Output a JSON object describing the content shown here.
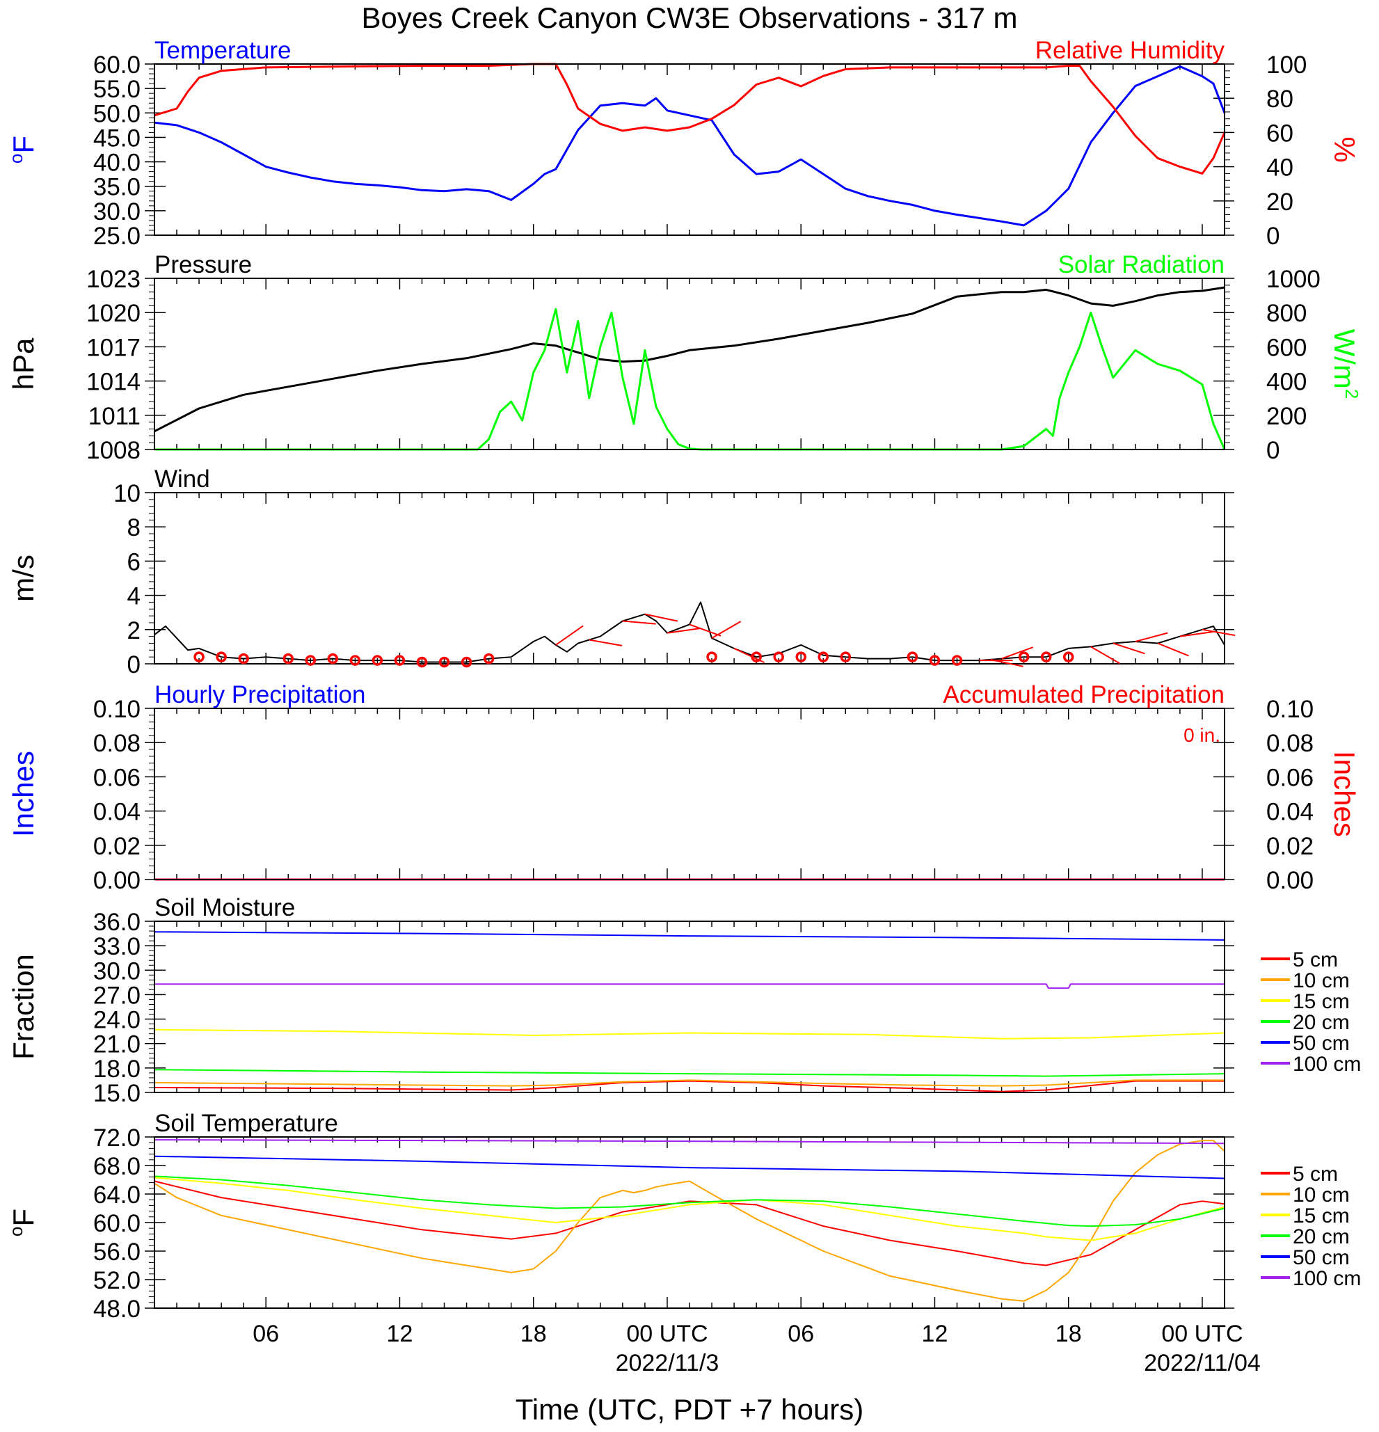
{
  "page": {
    "title": "Boyes Creek Canyon CW3E Observations - 317 m",
    "xlabel": "Time (UTC, PDT +7 hours)"
  },
  "colors": {
    "blue": "#0000ff",
    "red": "#ff0000",
    "green": "#00ff00",
    "black": "#000000",
    "orange": "#ffa500",
    "yellow": "#ffff00",
    "purple": "#a020f0"
  },
  "chart_data": [
    {
      "panel": "temp_rh",
      "type": "line",
      "title_left": "Temperature",
      "title_right": "Relative Humidity",
      "ylabel_left": "oF",
      "ylabel_right": "%",
      "ylim": [
        25,
        60
      ],
      "yticks": [
        "25.0",
        "30.0",
        "35.0",
        "40.0",
        "45.0",
        "50.0",
        "55.0",
        "60.0"
      ],
      "ylim_right": [
        0,
        100
      ],
      "yticks_right": [
        "0",
        "20",
        "40",
        "60",
        "80",
        "100"
      ],
      "series": [
        {
          "name": "Temperature",
          "color": "#0000ff",
          "axis": "left",
          "x": [
            0,
            1,
            2,
            3,
            4,
            5,
            6,
            7,
            8,
            9,
            10,
            11,
            12,
            13,
            14,
            15,
            16,
            17,
            17.5,
            18,
            19,
            20,
            21,
            22,
            22.5,
            23,
            24,
            25,
            26,
            27,
            28,
            29,
            30,
            31,
            32,
            33,
            34,
            35,
            36,
            37,
            38,
            39,
            40,
            41,
            42,
            43,
            44,
            45,
            46,
            47,
            47.5,
            48
          ],
          "y": [
            48,
            47.5,
            46,
            44,
            41.5,
            39,
            37.8,
            36.8,
            36,
            35.5,
            35.2,
            34.8,
            34.2,
            34,
            34.4,
            34,
            32.2,
            35.5,
            37.5,
            38.5,
            46.5,
            51.5,
            52,
            51.5,
            53,
            50.5,
            49.5,
            48.5,
            41.5,
            37.5,
            38,
            40.5,
            37.5,
            34.5,
            33,
            32,
            31.2,
            30,
            29.2,
            28.5,
            27.8,
            27,
            30,
            34.5,
            44,
            50,
            55.5,
            57.5,
            59.5,
            57.5,
            56,
            50
          ]
        },
        {
          "name": "Relative Humidity",
          "color": "#ff0000",
          "axis": "right",
          "x": [
            0,
            1,
            1.5,
            2,
            3,
            5,
            8,
            12,
            15,
            16,
            17,
            17.5,
            18,
            18.5,
            19,
            20,
            21,
            22,
            23,
            24,
            25,
            26,
            27,
            28,
            29,
            30,
            31,
            33,
            36,
            38,
            40,
            41,
            41.5,
            42,
            43,
            44,
            45,
            46,
            47,
            47.5,
            48
          ],
          "y": [
            70,
            74,
            84,
            92,
            96,
            98,
            98.5,
            99,
            99,
            99.5,
            100,
            100,
            100,
            88,
            74,
            65,
            61,
            63,
            61,
            63,
            68,
            76,
            88,
            92,
            87,
            93,
            97,
            98,
            98,
            98,
            98,
            99,
            99,
            90,
            75,
            58,
            45,
            40,
            36,
            45,
            60
          ]
        }
      ]
    },
    {
      "panel": "pressure_solar",
      "type": "line",
      "title_left": "Pressure",
      "title_right": "Solar Radiation",
      "ylabel_left": "hPa",
      "ylabel_right": "W/m2",
      "ylim": [
        1008,
        1023
      ],
      "yticks": [
        "1008",
        "1011",
        "1014",
        "1017",
        "1020",
        "1023"
      ],
      "ylim_right": [
        0,
        1000
      ],
      "yticks_right": [
        "0",
        "200",
        "400",
        "600",
        "800",
        "1000"
      ],
      "series": [
        {
          "name": "Pressure",
          "color": "#000000",
          "axis": "left",
          "x": [
            0,
            2,
            4,
            6,
            8,
            10,
            12,
            14,
            16,
            17,
            18,
            19,
            20,
            21,
            22,
            23,
            24,
            25,
            26,
            28,
            30,
            32,
            34,
            36,
            38,
            39,
            40,
            41,
            42,
            43,
            44,
            45,
            46,
            47,
            48
          ],
          "y": [
            1009.6,
            1011.6,
            1012.8,
            1013.5,
            1014.2,
            1014.9,
            1015.5,
            1016,
            1016.8,
            1017.3,
            1017.1,
            1016.5,
            1015.9,
            1015.7,
            1015.8,
            1016.2,
            1016.7,
            1016.9,
            1017.1,
            1017.7,
            1018.4,
            1019.1,
            1019.9,
            1021.4,
            1021.8,
            1021.8,
            1022,
            1021.5,
            1020.8,
            1020.6,
            1021,
            1021.5,
            1021.8,
            1021.9,
            1022.2
          ]
        },
        {
          "name": "Solar Radiation",
          "color": "#00ff00",
          "axis": "right",
          "x": [
            0,
            14.5,
            15,
            15.5,
            16,
            16.5,
            17,
            17.5,
            18,
            18.5,
            19,
            19.5,
            20,
            20.5,
            21,
            21.5,
            22,
            22.5,
            23,
            23.5,
            24,
            24.5,
            25,
            31,
            32,
            33,
            34,
            35,
            36,
            37,
            38,
            39,
            40,
            40.3,
            40.6,
            41,
            41.5,
            42,
            42.5,
            43,
            44,
            45,
            46,
            47,
            47.5,
            48
          ],
          "y": [
            0,
            0,
            60,
            220,
            280,
            170,
            450,
            580,
            820,
            450,
            750,
            300,
            600,
            800,
            420,
            150,
            580,
            250,
            120,
            30,
            5,
            0,
            0,
            0,
            0,
            0,
            0,
            0,
            0,
            0,
            0,
            20,
            120,
            80,
            300,
            450,
            600,
            800,
            600,
            420,
            580,
            500,
            460,
            380,
            150,
            0
          ]
        }
      ]
    },
    {
      "panel": "wind",
      "type": "line",
      "title_left": "Wind",
      "ylabel_left": "m/s",
      "ylim": [
        0,
        10
      ],
      "yticks": [
        "0",
        "2",
        "4",
        "6",
        "8",
        "10"
      ],
      "series": [
        {
          "name": "Wind",
          "color": "#000000",
          "axis": "left",
          "x": [
            0,
            0.5,
            1,
            1.5,
            2,
            3,
            4,
            5,
            6,
            7,
            8,
            9,
            10,
            11,
            12,
            13,
            14,
            15,
            16,
            17,
            17.5,
            18,
            18.5,
            19,
            20,
            21,
            22,
            22.5,
            23,
            24,
            24.5,
            25,
            26,
            27,
            28,
            29,
            30,
            31,
            32,
            33,
            34,
            35,
            36,
            37,
            38,
            39,
            40,
            41,
            42,
            43,
            44,
            45,
            46,
            47,
            47.5,
            48
          ],
          "y": [
            1.7,
            2.2,
            1.5,
            0.8,
            0.9,
            0.4,
            0.3,
            0.4,
            0.3,
            0.2,
            0.3,
            0.2,
            0.2,
            0.2,
            0.1,
            0.1,
            0.1,
            0.3,
            0.4,
            1.3,
            1.6,
            1.1,
            0.7,
            1.2,
            1.6,
            2.5,
            2.9,
            2.5,
            1.8,
            2.3,
            3.6,
            1.5,
            0.9,
            0.4,
            0.6,
            1.1,
            0.5,
            0.4,
            0.3,
            0.3,
            0.4,
            0.2,
            0.2,
            0.2,
            0.3,
            0.4,
            0.4,
            0.9,
            1.0,
            1.2,
            1.3,
            1.2,
            1.6,
            2.0,
            2.2,
            1.1
          ]
        }
      ]
    },
    {
      "panel": "precip",
      "type": "line",
      "title_left": "Hourly Precipitation",
      "title_right": "Accumulated Precipitation",
      "annotation": "0 in.",
      "ylabel_left": "Inches",
      "ylabel_right": "Inches",
      "ylim": [
        0,
        0.1
      ],
      "yticks": [
        "0.00",
        "0.02",
        "0.04",
        "0.06",
        "0.08",
        "0.10"
      ],
      "series": [
        {
          "name": "Hourly Precipitation",
          "color": "#0000ff",
          "axis": "left",
          "x": [
            0,
            48
          ],
          "y": [
            0,
            0
          ]
        },
        {
          "name": "Accumulated Precipitation",
          "color": "#ff0000",
          "axis": "right",
          "x": [
            0,
            48
          ],
          "y": [
            0,
            0
          ]
        }
      ]
    },
    {
      "panel": "soil_moisture",
      "type": "line",
      "title_left": "Soil Moisture",
      "ylabel_left": "Fraction",
      "ylim": [
        15,
        36
      ],
      "yticks": [
        "15.0",
        "18.0",
        "21.0",
        "24.0",
        "27.0",
        "30.0",
        "33.0",
        "36.0"
      ],
      "series": [
        {
          "name": "5 cm",
          "color": "#ff0000",
          "x": [
            0,
            8,
            16,
            18,
            21,
            24,
            27,
            30,
            34,
            38,
            40,
            44,
            48
          ],
          "y": [
            15.6,
            15.5,
            15.3,
            15.6,
            16.2,
            16.4,
            16.2,
            15.8,
            15.5,
            15.1,
            15.3,
            16.4,
            16.4
          ]
        },
        {
          "name": "10 cm",
          "color": "#ffa500",
          "x": [
            0,
            8,
            16,
            18,
            21,
            24,
            27,
            30,
            34,
            38,
            40,
            44,
            48
          ],
          "y": [
            16.2,
            16,
            15.8,
            15.9,
            16.3,
            16.5,
            16.3,
            16.1,
            15.9,
            15.8,
            15.9,
            16.5,
            16.5
          ]
        },
        {
          "name": "15 cm",
          "color": "#ffff00",
          "x": [
            0,
            8,
            17,
            24,
            32,
            38,
            42,
            48
          ],
          "y": [
            22.7,
            22.5,
            22.0,
            22.3,
            22.1,
            21.6,
            21.7,
            22.3
          ]
        },
        {
          "name": "20 cm",
          "color": "#00ff00",
          "x": [
            0,
            12,
            24,
            36,
            40,
            48
          ],
          "y": [
            17.8,
            17.5,
            17.3,
            17.1,
            17.0,
            17.3
          ]
        },
        {
          "name": "50 cm",
          "color": "#0000ff",
          "x": [
            0,
            12,
            24,
            36,
            48
          ],
          "y": [
            34.7,
            34.5,
            34.2,
            34.0,
            33.7
          ]
        },
        {
          "name": "100 cm",
          "color": "#a020f0",
          "x": [
            0,
            40,
            40.1,
            41,
            41.1,
            48
          ],
          "y": [
            28.3,
            28.3,
            27.8,
            27.8,
            28.3,
            28.3
          ]
        }
      ]
    },
    {
      "panel": "soil_temp",
      "type": "line",
      "title_left": "Soil Temperature",
      "ylabel_left": "oF",
      "ylim": [
        48,
        72
      ],
      "yticks": [
        "48.0",
        "52.0",
        "56.0",
        "60.0",
        "64.0",
        "68.0",
        "72.0"
      ],
      "series": [
        {
          "name": "5 cm",
          "color": "#ff0000",
          "x": [
            0,
            3,
            6,
            9,
            12,
            15,
            16,
            18,
            21,
            24,
            27,
            30,
            33,
            36,
            39,
            40,
            42,
            44,
            46,
            47,
            48
          ],
          "y": [
            65.8,
            63.5,
            62,
            60.5,
            59,
            58,
            57.7,
            58.5,
            61.5,
            63,
            62.5,
            59.5,
            57.5,
            56,
            54.3,
            54,
            55.5,
            59,
            62.5,
            63,
            62.6
          ]
        },
        {
          "name": "10 cm",
          "color": "#ffa500",
          "x": [
            0,
            1,
            3,
            6,
            9,
            12,
            15,
            16,
            17,
            18,
            19,
            20,
            21,
            21.5,
            22,
            22.5,
            23,
            24,
            25,
            27,
            30,
            33,
            36,
            38,
            39,
            40,
            41,
            42,
            43,
            44,
            45,
            46,
            47,
            47.5,
            48
          ],
          "y": [
            65.5,
            63.5,
            61,
            59,
            57,
            55,
            53.5,
            53,
            53.5,
            56,
            60,
            63.5,
            64.5,
            64.2,
            64.5,
            65,
            65.3,
            65.8,
            64,
            60.5,
            56,
            52.5,
            50.5,
            49.3,
            49,
            50.5,
            53,
            57.5,
            63,
            67,
            69.5,
            71,
            71.5,
            71.5,
            70
          ]
        },
        {
          "name": "15 cm",
          "color": "#ffff00",
          "x": [
            0,
            3,
            6,
            9,
            12,
            15,
            18,
            21,
            24,
            27,
            30,
            33,
            36,
            39,
            40,
            42,
            44,
            46,
            48
          ],
          "y": [
            66.3,
            65.5,
            64.5,
            63.2,
            62,
            61,
            60,
            61,
            62.5,
            63.2,
            62.5,
            61,
            59.5,
            58.5,
            58,
            57.5,
            58.5,
            60.5,
            62.2
          ]
        },
        {
          "name": "20 cm",
          "color": "#00ff00",
          "x": [
            0,
            3,
            6,
            9,
            12,
            15,
            18,
            21,
            24,
            27,
            30,
            33,
            36,
            39,
            41,
            42,
            44,
            46,
            48
          ],
          "y": [
            66.5,
            66,
            65.2,
            64.2,
            63.2,
            62.5,
            62,
            62.2,
            62.8,
            63.2,
            63,
            62.2,
            61.2,
            60.2,
            59.6,
            59.5,
            59.7,
            60.5,
            62
          ]
        },
        {
          "name": "50 cm",
          "color": "#0000ff",
          "x": [
            0,
            12,
            24,
            36,
            48
          ],
          "y": [
            69.3,
            68.6,
            67.7,
            67.2,
            66.2
          ]
        },
        {
          "name": "100 cm",
          "color": "#a020f0",
          "x": [
            0,
            24,
            48
          ],
          "y": [
            71.6,
            71.4,
            71.1
          ]
        }
      ],
      "legend": [
        "5 cm",
        "10 cm",
        "15 cm",
        "20 cm",
        "50 cm",
        "100 cm"
      ]
    }
  ],
  "wind_barbs": {
    "circle_times": [
      2,
      3,
      4,
      6,
      7,
      8,
      9,
      10,
      11,
      12,
      13,
      14,
      15,
      25,
      27,
      28,
      29,
      30,
      31,
      34,
      35,
      36,
      39,
      40,
      41
    ],
    "barb_times": [
      18,
      19.5,
      21,
      22,
      23,
      24,
      25,
      26,
      37,
      37.5,
      38,
      42,
      43,
      44,
      45,
      46,
      47
    ]
  },
  "xaxis": {
    "ticks": [
      "06",
      "12",
      "18",
      "00 UTC",
      "06",
      "12",
      "18",
      "00 UTC"
    ],
    "tick_hours": [
      5,
      11,
      17,
      23,
      29,
      35,
      41,
      47
    ],
    "dates": [
      "2022/11/3",
      "2022/11/04"
    ],
    "date_hours": [
      23,
      47
    ]
  },
  "legend_labels": [
    "5 cm",
    "10 cm",
    "15 cm",
    "20 cm",
    "50 cm",
    "100 cm"
  ]
}
